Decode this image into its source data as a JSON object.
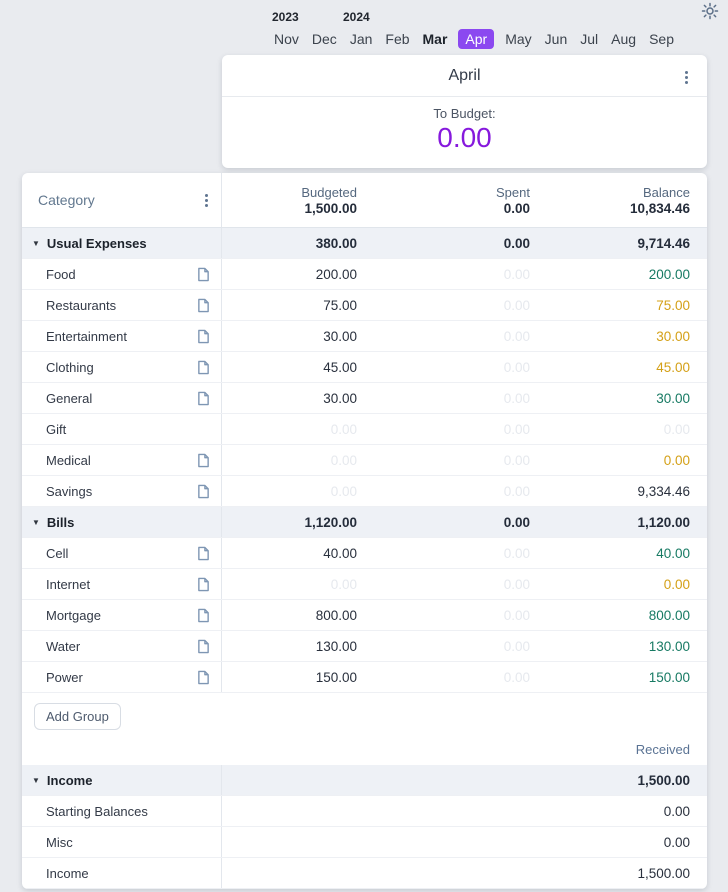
{
  "theme": {
    "page_bg": "#e9ebef",
    "accent_purple": "#8b48f0",
    "to_budget_purple": "#8619dd",
    "positive_green": "#177a63",
    "warning_orange": "#d4a017",
    "faint_gray": "#e6e9ee"
  },
  "month_selector": {
    "years": [
      {
        "label": "2023"
      },
      {
        "label": "2024"
      }
    ],
    "months": [
      {
        "label": "Nov"
      },
      {
        "label": "Dec"
      },
      {
        "label": "Jan"
      },
      {
        "label": "Feb"
      },
      {
        "label": "Mar",
        "bold": true
      },
      {
        "label": "Apr",
        "selected": true
      },
      {
        "label": "May"
      },
      {
        "label": "Jun"
      },
      {
        "label": "Jul"
      },
      {
        "label": "Aug"
      },
      {
        "label": "Sep"
      }
    ]
  },
  "month_card": {
    "title": "April",
    "to_budget_label": "To Budget:",
    "to_budget_value": "0.00"
  },
  "table": {
    "header": {
      "category_label": "Category",
      "columns": [
        {
          "label": "Budgeted",
          "value": "1,500.00"
        },
        {
          "label": "Spent",
          "value": "0.00"
        },
        {
          "label": "Balance",
          "value": "10,834.46"
        }
      ]
    },
    "groups": [
      {
        "name": "Usual Expenses",
        "budgeted": "380.00",
        "spent": "0.00",
        "balance": "9,714.46",
        "rows": [
          {
            "name": "Food",
            "icon": true,
            "budgeted": "200.00",
            "budgeted_faint": false,
            "spent": "0.00",
            "balance": "200.00",
            "balance_color": "green"
          },
          {
            "name": "Restaurants",
            "icon": true,
            "budgeted": "75.00",
            "budgeted_faint": false,
            "spent": "0.00",
            "balance": "75.00",
            "balance_color": "orange"
          },
          {
            "name": "Entertainment",
            "icon": true,
            "budgeted": "30.00",
            "budgeted_faint": false,
            "spent": "0.00",
            "balance": "30.00",
            "balance_color": "orange"
          },
          {
            "name": "Clothing",
            "icon": true,
            "budgeted": "45.00",
            "budgeted_faint": false,
            "spent": "0.00",
            "balance": "45.00",
            "balance_color": "orange"
          },
          {
            "name": "General",
            "icon": true,
            "budgeted": "30.00",
            "budgeted_faint": false,
            "spent": "0.00",
            "balance": "30.00",
            "balance_color": "green"
          },
          {
            "name": "Gift",
            "icon": false,
            "budgeted": "0.00",
            "budgeted_faint": true,
            "spent": "0.00",
            "balance": "0.00",
            "balance_color": "faint"
          },
          {
            "name": "Medical",
            "icon": true,
            "budgeted": "0.00",
            "budgeted_faint": true,
            "spent": "0.00",
            "balance": "0.00",
            "balance_color": "orange"
          },
          {
            "name": "Savings",
            "icon": true,
            "budgeted": "0.00",
            "budgeted_faint": true,
            "spent": "0.00",
            "balance": "9,334.46",
            "balance_color": "dark"
          }
        ]
      },
      {
        "name": "Bills",
        "budgeted": "1,120.00",
        "spent": "0.00",
        "balance": "1,120.00",
        "rows": [
          {
            "name": "Cell",
            "icon": true,
            "budgeted": "40.00",
            "budgeted_faint": false,
            "spent": "0.00",
            "balance": "40.00",
            "balance_color": "green"
          },
          {
            "name": "Internet",
            "icon": true,
            "budgeted": "0.00",
            "budgeted_faint": true,
            "spent": "0.00",
            "balance": "0.00",
            "balance_color": "orange"
          },
          {
            "name": "Mortgage",
            "icon": true,
            "budgeted": "800.00",
            "budgeted_faint": false,
            "spent": "0.00",
            "balance": "800.00",
            "balance_color": "green"
          },
          {
            "name": "Water",
            "icon": true,
            "budgeted": "130.00",
            "budgeted_faint": false,
            "spent": "0.00",
            "balance": "130.00",
            "balance_color": "green"
          },
          {
            "name": "Power",
            "icon": true,
            "budgeted": "150.00",
            "budgeted_faint": false,
            "spent": "0.00",
            "balance": "150.00",
            "balance_color": "green"
          }
        ]
      }
    ],
    "add_group_label": "Add Group",
    "received_label": "Received",
    "income_group": {
      "name": "Income",
      "received": "1,500.00",
      "rows": [
        {
          "name": "Starting Balances",
          "received": "0.00"
        },
        {
          "name": "Misc",
          "received": "0.00"
        },
        {
          "name": "Income",
          "received": "1,500.00"
        }
      ]
    }
  }
}
